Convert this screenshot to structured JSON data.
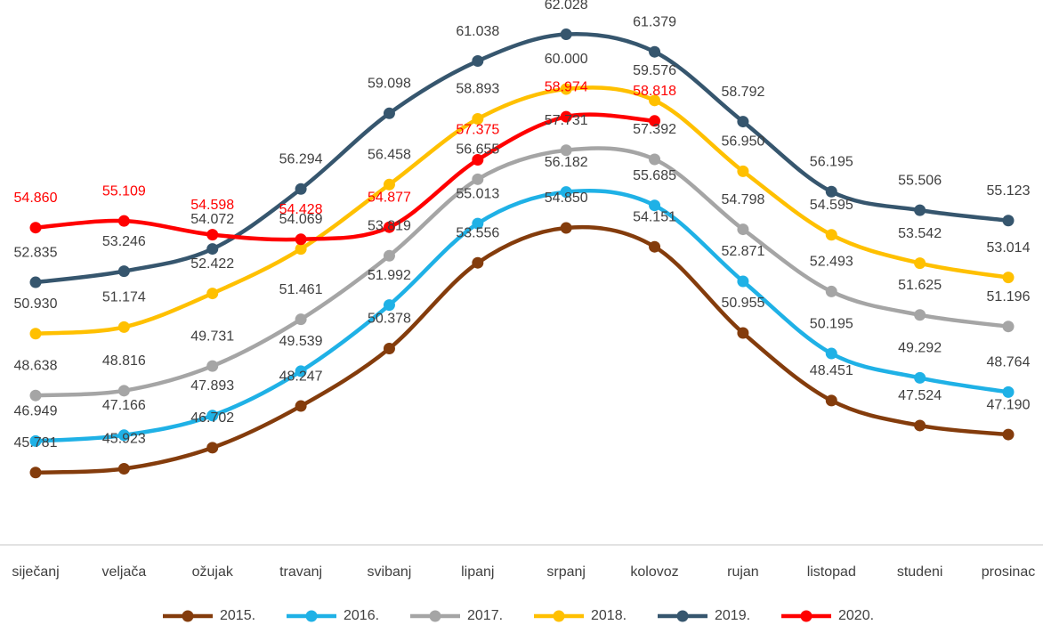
{
  "chart_data": {
    "type": "line",
    "categories": [
      "siječanj",
      "veljača",
      "ožujak",
      "travanj",
      "svibanj",
      "lipanj",
      "srpanj",
      "kolovoz",
      "rujan",
      "listopad",
      "studeni",
      "prosinac"
    ],
    "ylim": [
      43.1,
      63.3
    ],
    "series": [
      {
        "name": "2015.",
        "color": "#843c0c",
        "label_color": "#404040",
        "values": [
          45.781,
          45.923,
          46.702,
          48.247,
          50.378,
          53.556,
          54.85,
          54.151,
          50.955,
          48.451,
          47.524,
          47.19
        ],
        "value_labels": [
          "45.781",
          "45.923",
          "46.702",
          "48.247",
          "50.378",
          "53.556",
          "54.850",
          "54.151",
          "50.955",
          "48.451",
          "47.524",
          "47.190"
        ]
      },
      {
        "name": "2016.",
        "color": "#1fb1e6",
        "label_color": "#404040",
        "values": [
          46.949,
          47.166,
          47.893,
          49.539,
          51.992,
          55.013,
          56.182,
          55.685,
          52.871,
          50.195,
          49.292,
          48.764
        ],
        "value_labels": [
          "46.949",
          "47.166",
          "47.893",
          "49.539",
          "51.992",
          "55.013",
          "56.182",
          "55.685",
          "52.871",
          "50.195",
          "49.292",
          "48.764"
        ]
      },
      {
        "name": "2017.",
        "color": "#a5a5a5",
        "label_color": "#404040",
        "values": [
          48.638,
          48.816,
          49.731,
          51.461,
          53.819,
          56.655,
          57.731,
          57.392,
          54.798,
          52.493,
          51.625,
          51.196
        ],
        "value_labels": [
          "48.638",
          "48.816",
          "49.731",
          "51.461",
          "53.819",
          "56.655",
          "57.731",
          "57.392",
          "54.798",
          "52.493",
          "51.625",
          "51.196"
        ]
      },
      {
        "name": "2018.",
        "color": "#ffc000",
        "label_color": "#404040",
        "values": [
          50.93,
          51.174,
          52.422,
          54.069,
          56.458,
          58.893,
          60.0,
          59.576,
          56.95,
          54.595,
          53.542,
          53.014
        ],
        "value_labels": [
          "50.930",
          "51.174",
          "52.422",
          "54.069",
          "56.458",
          "58.893",
          "60.000",
          "59.576",
          "56.950",
          "54.595",
          "53.542",
          "53.014"
        ]
      },
      {
        "name": "2019.",
        "color": "#36566e",
        "label_color": "#404040",
        "values": [
          52.835,
          53.246,
          54.072,
          56.294,
          59.098,
          61.038,
          62.028,
          61.379,
          58.792,
          56.195,
          55.506,
          55.123
        ],
        "value_labels": [
          "52.835",
          "53.246",
          "54.072",
          "56.294",
          "59.098",
          "61.038",
          "62.028",
          "61.379",
          "58.792",
          "56.195",
          "55.506",
          "55.123"
        ]
      },
      {
        "name": "2020.",
        "color": "#ff0000",
        "label_color": "#ff0000",
        "values": [
          54.86,
          55.109,
          54.598,
          54.428,
          54.877,
          57.375,
          58.974,
          58.818,
          null,
          null,
          null,
          null
        ],
        "value_labels": [
          "54.860",
          "55.109",
          "54.598",
          "54.428",
          "54.877",
          "57.375",
          "58.974",
          "58.818",
          null,
          null,
          null,
          null
        ]
      }
    ]
  }
}
